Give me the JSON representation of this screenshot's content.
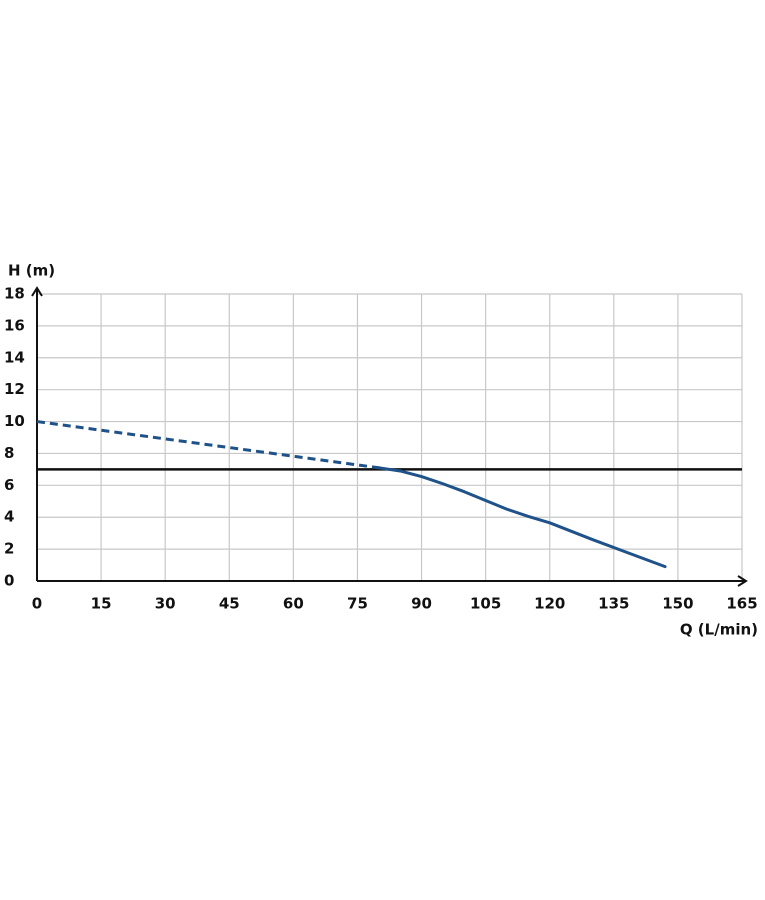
{
  "chart_data": {
    "type": "line",
    "y_label": "H (m)",
    "x_label": "Q (L/min)",
    "xlim": [
      0,
      165
    ],
    "xticks": [
      0,
      15,
      30,
      45,
      60,
      75,
      90,
      105,
      120,
      135,
      150,
      165
    ],
    "ylim": [
      0,
      18
    ],
    "yticks": [
      0,
      2,
      4,
      6,
      8,
      10,
      12,
      14,
      16,
      18
    ],
    "grid": true,
    "hline": {
      "value": 7,
      "color": "#111111"
    },
    "series": [
      {
        "color": "#1f5289",
        "dashed": true,
        "x": [
          0,
          80
        ],
        "values": [
          10,
          7.1
        ]
      },
      {
        "color": "#1f5289",
        "dashed": false,
        "x": [
          80,
          85,
          90,
          95,
          100,
          105,
          110,
          115,
          120,
          130,
          140,
          147
        ],
        "values": [
          7.1,
          6.9,
          6.55,
          6.1,
          5.6,
          5.05,
          4.5,
          4.05,
          3.65,
          2.6,
          1.6,
          0.9
        ]
      }
    ]
  }
}
